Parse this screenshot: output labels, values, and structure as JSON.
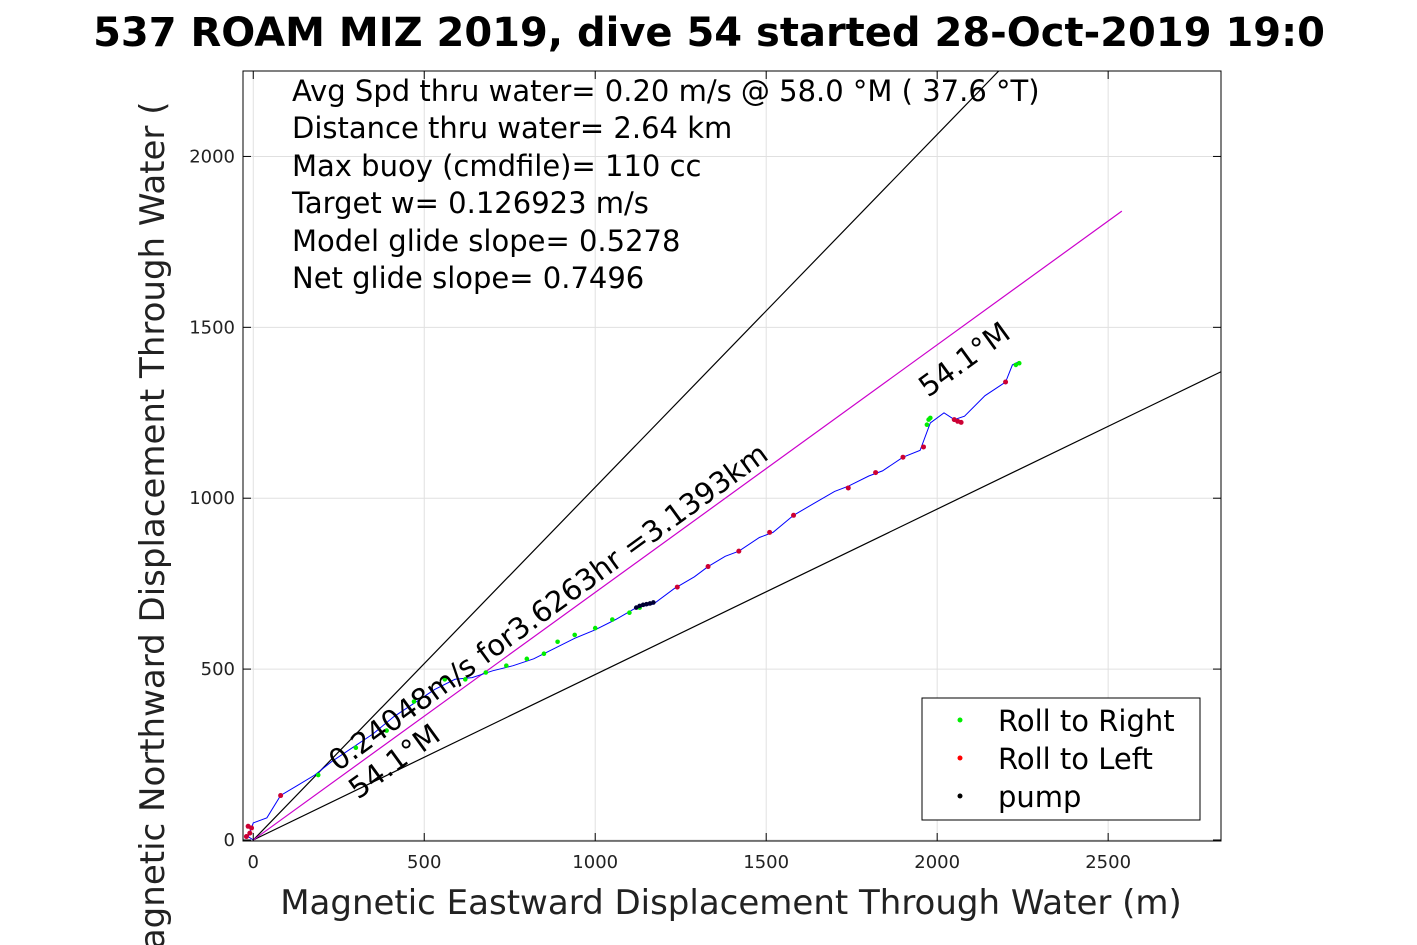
{
  "chart_data": {
    "type": "line",
    "title": "537 ROAM MIZ 2019, dive 54 started 28-Oct-2019 19:0",
    "xlabel": "Magnetic Eastward Displacement Through Water (m)",
    "ylabel": "Magnetic Northward Displacement Through Water (",
    "xlim": [
      -30,
      2830
    ],
    "ylim": [
      -3,
      2250
    ],
    "xticks": [
      0,
      500,
      1000,
      1500,
      2000,
      2500
    ],
    "yticks": [
      0,
      500,
      1000,
      1500,
      2000
    ],
    "grid": true,
    "annotations": {
      "stats": [
        "Avg Spd thru water=  0.20 m/s @  58.0 °M ( 37.6 °T)",
        "Distance thru water=  2.64 km",
        "Max buoy (cmdfile)= 110 cc",
        "Target w= 0.126923 m/s",
        "Model glide slope= 0.5278",
        "Net glide slope= 0.7496"
      ],
      "heading_upper": "54.1°M",
      "heading_lower": "54.1°M",
      "speed_label": "0.24048m/s for3.6263hr =3.1393km"
    },
    "legend": {
      "placement": "bottom-right",
      "entries": [
        {
          "label": "Roll to Right",
          "color": "#00ee00"
        },
        {
          "label": "Roll to Left",
          "color": "#ff0000"
        },
        {
          "label": "pump",
          "color": "#000000"
        }
      ]
    },
    "reference_lines": [
      {
        "name": "upper-bound",
        "color": "#000000",
        "points": [
          [
            0,
            0
          ],
          [
            2180,
            2250
          ]
        ]
      },
      {
        "name": "lower-bound",
        "color": "#000000",
        "points": [
          [
            0,
            0
          ],
          [
            2830,
            1370
          ]
        ]
      },
      {
        "name": "mean-heading",
        "color": "#cc00cc",
        "points": [
          [
            0,
            0
          ],
          [
            2540,
            1840
          ]
        ]
      }
    ],
    "track": {
      "color": "#0000ff",
      "points": [
        [
          0,
          0
        ],
        [
          -15,
          10
        ],
        [
          0,
          50
        ],
        [
          40,
          65
        ],
        [
          80,
          130
        ],
        [
          130,
          160
        ],
        [
          180,
          190
        ],
        [
          230,
          230
        ],
        [
          290,
          270
        ],
        [
          350,
          310
        ],
        [
          410,
          360
        ],
        [
          470,
          400
        ],
        [
          530,
          440
        ],
        [
          590,
          470
        ],
        [
          640,
          475
        ],
        [
          700,
          495
        ],
        [
          760,
          510
        ],
        [
          820,
          530
        ],
        [
          880,
          560
        ],
        [
          940,
          590
        ],
        [
          1000,
          615
        ],
        [
          1060,
          645
        ],
        [
          1120,
          680
        ],
        [
          1170,
          690
        ],
        [
          1230,
          735
        ],
        [
          1290,
          770
        ],
        [
          1330,
          800
        ],
        [
          1380,
          830
        ],
        [
          1420,
          845
        ],
        [
          1480,
          885
        ],
        [
          1520,
          900
        ],
        [
          1580,
          950
        ],
        [
          1640,
          985
        ],
        [
          1700,
          1020
        ],
        [
          1740,
          1035
        ],
        [
          1800,
          1065
        ],
        [
          1840,
          1080
        ],
        [
          1900,
          1120
        ],
        [
          1950,
          1140
        ],
        [
          1980,
          1220
        ],
        [
          2020,
          1250
        ],
        [
          2050,
          1230
        ],
        [
          2080,
          1240
        ],
        [
          2140,
          1300
        ],
        [
          2200,
          1340
        ],
        [
          2220,
          1390
        ],
        [
          2240,
          1400
        ]
      ]
    },
    "roll_right": [
      [
        190,
        190
      ],
      [
        300,
        270
      ],
      [
        390,
        320
      ],
      [
        470,
        405
      ],
      [
        560,
        470
      ],
      [
        620,
        470
      ],
      [
        680,
        490
      ],
      [
        740,
        510
      ],
      [
        800,
        530
      ],
      [
        850,
        545
      ],
      [
        890,
        580
      ],
      [
        940,
        600
      ],
      [
        1000,
        620
      ],
      [
        1050,
        645
      ],
      [
        1100,
        665
      ],
      [
        1130,
        680
      ],
      [
        1970,
        1215
      ],
      [
        1975,
        1230
      ],
      [
        1980,
        1235
      ],
      [
        2240,
        1395
      ],
      [
        2230,
        1390
      ]
    ],
    "roll_left": [
      [
        -20,
        10
      ],
      [
        -10,
        20
      ],
      [
        -5,
        35
      ],
      [
        -15,
        40
      ],
      [
        80,
        130
      ],
      [
        1240,
        740
      ],
      [
        1330,
        800
      ],
      [
        1420,
        845
      ],
      [
        1510,
        900
      ],
      [
        1580,
        950
      ],
      [
        1740,
        1030
      ],
      [
        1820,
        1075
      ],
      [
        1900,
        1120
      ],
      [
        1960,
        1150
      ],
      [
        2050,
        1230
      ],
      [
        2060,
        1225
      ],
      [
        2070,
        1222
      ],
      [
        2200,
        1340
      ]
    ],
    "pump": [
      [
        1120,
        680
      ],
      [
        1130,
        685
      ],
      [
        1140,
        688
      ],
      [
        1150,
        690
      ],
      [
        1160,
        692
      ],
      [
        1170,
        695
      ]
    ]
  }
}
